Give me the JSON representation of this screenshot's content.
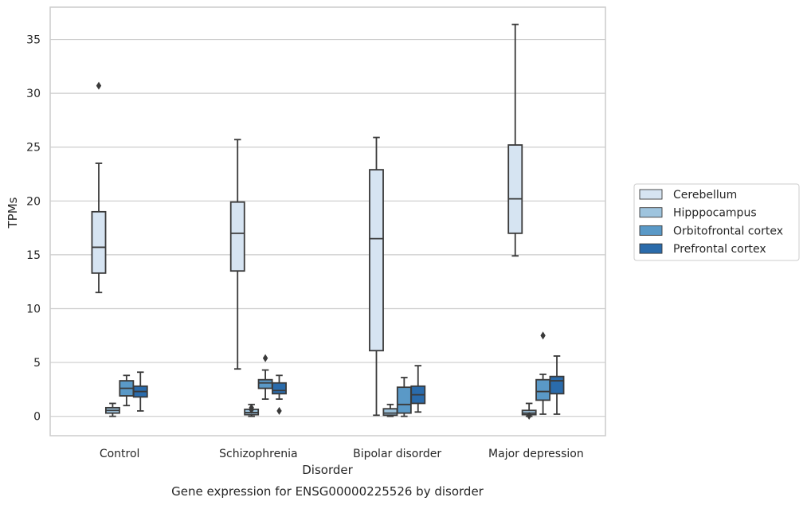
{
  "chart_data": {
    "type": "boxplot",
    "title": "Gene expression for ENSG00000225526 by disorder",
    "xlabel": "Disorder",
    "ylabel": "TPMs",
    "ylim": [
      -1.8,
      38
    ],
    "yticks": [
      0,
      5,
      10,
      15,
      20,
      25,
      30,
      35
    ],
    "grid": true,
    "legend_position": "right",
    "categories": [
      "Control",
      "Schizophrenia",
      "Bipolar disorder",
      "Major depression"
    ],
    "series": [
      {
        "name": "Cerebellum",
        "color": "#d6e4f2",
        "boxes": [
          {
            "whislo": 11.5,
            "q1": 13.3,
            "med": 15.7,
            "q3": 19.0,
            "whishi": 23.5,
            "fliers": [
              30.7
            ]
          },
          {
            "whislo": 4.4,
            "q1": 13.5,
            "med": 17.0,
            "q3": 19.9,
            "whishi": 25.7,
            "fliers": []
          },
          {
            "whislo": 0.1,
            "q1": 6.1,
            "med": 16.5,
            "q3": 22.9,
            "whishi": 25.9,
            "fliers": []
          },
          {
            "whislo": 14.9,
            "q1": 17.0,
            "med": 20.2,
            "q3": 25.2,
            "whishi": 36.4,
            "fliers": []
          }
        ]
      },
      {
        "name": "Hipppocampus",
        "color": "#9ec4de",
        "boxes": [
          {
            "whislo": 0.0,
            "q1": 0.3,
            "med": 0.55,
            "q3": 0.8,
            "whishi": 1.2,
            "fliers": []
          },
          {
            "whislo": 0.0,
            "q1": 0.15,
            "med": 0.35,
            "q3": 0.65,
            "whishi": 1.1,
            "fliers": [
              0.6,
              0.8
            ]
          },
          {
            "whislo": 0.0,
            "q1": 0.1,
            "med": 0.3,
            "q3": 0.7,
            "whishi": 1.1,
            "fliers": []
          },
          {
            "whislo": 0.0,
            "q1": 0.15,
            "med": 0.3,
            "q3": 0.55,
            "whishi": 1.2,
            "fliers": [
              0.05
            ]
          }
        ]
      },
      {
        "name": "Orbitofrontal cortex",
        "color": "#5a99c7",
        "boxes": [
          {
            "whislo": 1.0,
            "q1": 1.9,
            "med": 2.6,
            "q3": 3.3,
            "whishi": 3.8,
            "fliers": []
          },
          {
            "whislo": 1.6,
            "q1": 2.6,
            "med": 3.1,
            "q3": 3.4,
            "whishi": 4.3,
            "fliers": [
              5.4
            ]
          },
          {
            "whislo": 0.0,
            "q1": 0.3,
            "med": 1.1,
            "q3": 2.7,
            "whishi": 3.6,
            "fliers": []
          },
          {
            "whislo": 0.2,
            "q1": 1.5,
            "med": 2.3,
            "q3": 3.4,
            "whishi": 3.9,
            "fliers": [
              7.5
            ]
          }
        ]
      },
      {
        "name": "Prefrontal cortex",
        "color": "#2a6bab",
        "boxes": [
          {
            "whislo": 0.5,
            "q1": 1.8,
            "med": 2.3,
            "q3": 2.8,
            "whishi": 4.1,
            "fliers": []
          },
          {
            "whislo": 1.6,
            "q1": 2.1,
            "med": 2.4,
            "q3": 3.1,
            "whishi": 3.8,
            "fliers": [
              0.5
            ]
          },
          {
            "whislo": 0.4,
            "q1": 1.2,
            "med": 2.0,
            "q3": 2.8,
            "whishi": 4.7,
            "fliers": []
          },
          {
            "whislo": 0.2,
            "q1": 2.1,
            "med": 3.3,
            "q3": 3.7,
            "whishi": 5.6,
            "fliers": []
          }
        ]
      }
    ]
  }
}
